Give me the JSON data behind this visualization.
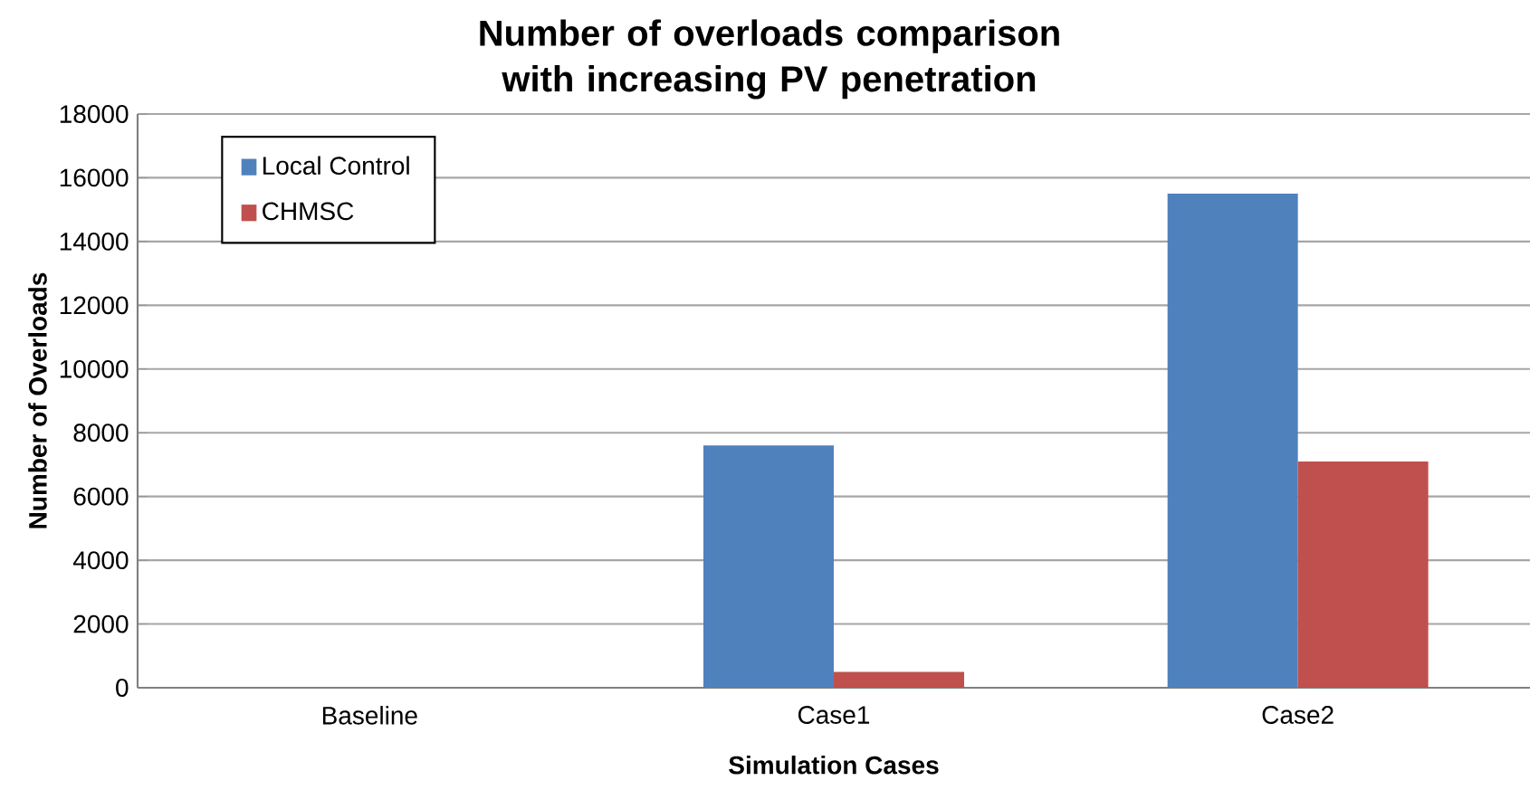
{
  "chart_data": {
    "type": "bar",
    "title": "Number of overloads comparison with increasing PV penetration",
    "xlabel": "Simulation Cases",
    "ylabel": "Number of Overloads",
    "categories": [
      "Baseline",
      "Case1",
      "Case2"
    ],
    "series": [
      {
        "name": "Local Control",
        "color": "#4f81bd",
        "values": [
          0,
          7600,
          15500
        ]
      },
      {
        "name": "CHMSC",
        "color": "#c0504d",
        "values": [
          0,
          500,
          7100
        ]
      }
    ],
    "ylim": [
      0,
      18000
    ],
    "yticks": [
      0,
      2000,
      4000,
      6000,
      8000,
      10000,
      12000,
      14000,
      16000,
      18000
    ],
    "grid": "y",
    "legend": "top left"
  }
}
